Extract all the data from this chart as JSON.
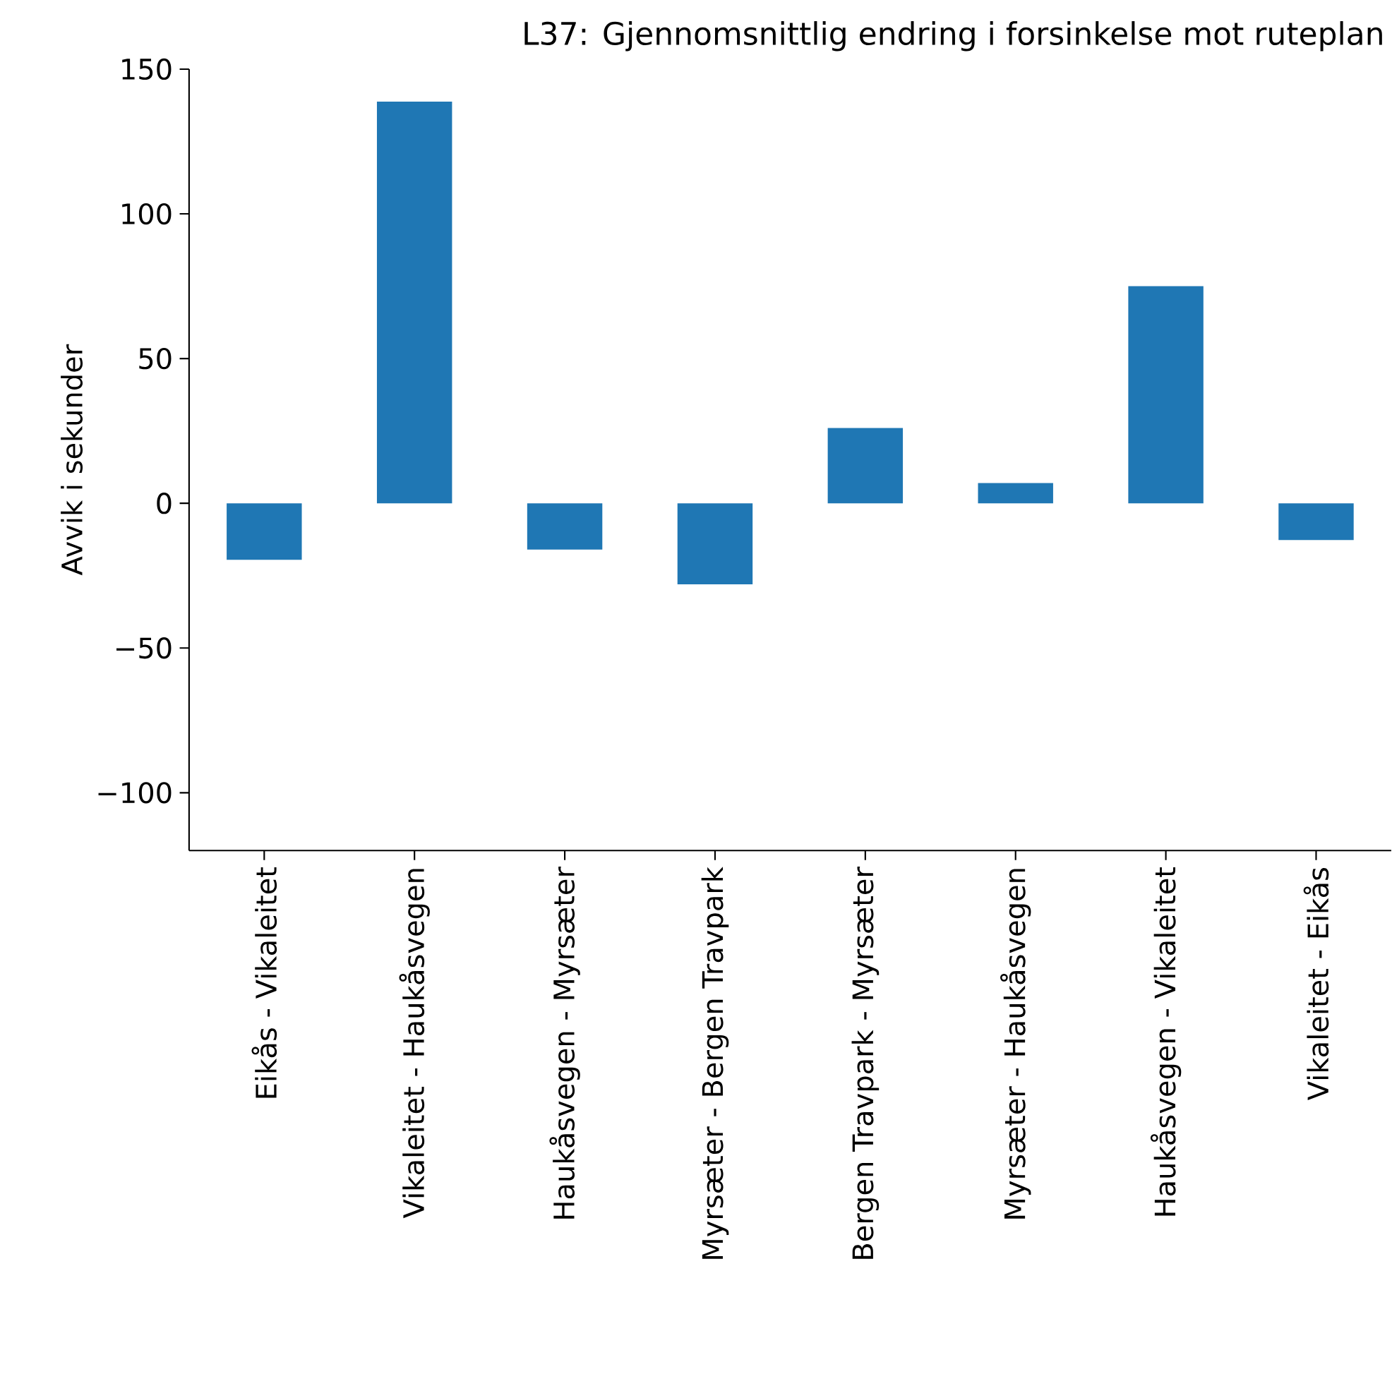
{
  "chart_data": {
    "type": "bar",
    "title": "L37: Gjennomsnittlig endring i forsinkelse mot ruteplan",
    "ylabel": "Avvik i sekunder",
    "categories": [
      "Eikås - Vikaleitet",
      "Vikaleitet - Haukåsvegen",
      "Haukåsvegen - Myrsæter",
      "Myrsæter - Bergen Travpark",
      "Bergen Travpark - Myrsæter",
      "Myrsæter - Haukåsvegen",
      "Haukåsvegen - Vikaleitet",
      "Vikaleitet - Eikås"
    ],
    "values": [
      -19.5,
      138.8,
      -16,
      -28,
      26,
      7,
      75,
      -12.7
    ],
    "color": "#1f77b4",
    "ylim": [
      -120,
      150
    ],
    "yticks": [
      {
        "value": -100,
        "label": "−100"
      },
      {
        "value": -50,
        "label": "−50"
      },
      0,
      50,
      100,
      150
    ],
    "grid": false
  }
}
